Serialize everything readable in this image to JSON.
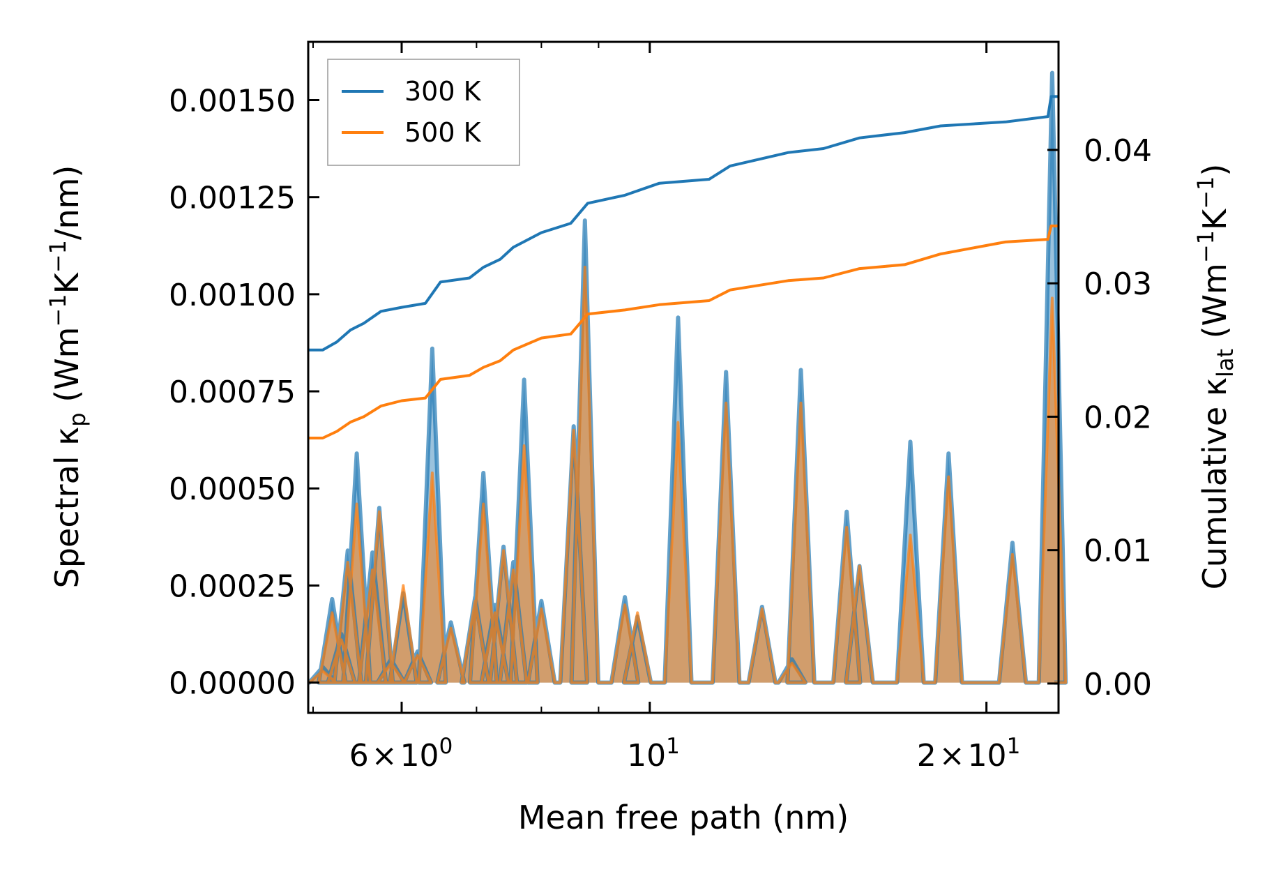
{
  "chart_data": {
    "type": "line",
    "xscale": "log",
    "xlim": [
      4.95,
      23.2
    ],
    "ylim_left": [
      -7.8e-05,
      0.00165
    ],
    "ylim_right": [
      -0.0022,
      0.0481
    ],
    "xlabel": "Mean free path (nm)",
    "ylabel_left": {
      "base": "Spectral κ",
      "sub": "p",
      "unit_open": " (Wm",
      "sup1": "−1",
      "mid": "K",
      "sup2": "−1",
      "tail": "/nm)"
    },
    "ylabel_right": {
      "base": "Cumulative κ",
      "sub": "lat",
      "unit_open": " (Wm",
      "sup1": "−1",
      "mid": "K",
      "sup2": "−1",
      "tail": ")"
    },
    "x_tick_labels": [
      {
        "value": 6,
        "coef": "6",
        "times": "×",
        "base": "10",
        "exp": "0"
      },
      {
        "value": 10,
        "coef": "",
        "times": "",
        "base": "10",
        "exp": "1"
      },
      {
        "value": 20,
        "coef": "2",
        "times": "×",
        "base": "10",
        "exp": "1"
      }
    ],
    "x_minor_ticks": [
      5,
      7,
      8,
      9
    ],
    "y_left_ticks": [
      {
        "value": 0.0,
        "label": "0.00000"
      },
      {
        "value": 0.00025,
        "label": "0.00025"
      },
      {
        "value": 0.0005,
        "label": "0.00050"
      },
      {
        "value": 0.00075,
        "label": "0.00075"
      },
      {
        "value": 0.001,
        "label": "0.00100"
      },
      {
        "value": 0.00125,
        "label": "0.00125"
      },
      {
        "value": 0.0015,
        "label": "0.00150"
      }
    ],
    "y_right_ticks": [
      {
        "value": 0.0,
        "label": "0.00"
      },
      {
        "value": 0.01,
        "label": "0.01"
      },
      {
        "value": 0.02,
        "label": "0.02"
      },
      {
        "value": 0.03,
        "label": "0.03"
      },
      {
        "value": 0.04,
        "label": "0.04"
      }
    ],
    "legend": {
      "position": "upper-left",
      "entries": [
        {
          "name": "300 K",
          "color": "#1f77b4"
        },
        {
          "name": "500 K",
          "color": "#ff7f0e"
        }
      ]
    },
    "series": [
      {
        "name": "300 K",
        "color": "#1f77b4",
        "spectral_peaks": [
          [
            5.1,
            4e-05
          ],
          [
            5.2,
            0.000215
          ],
          [
            5.3,
            0.000125
          ],
          [
            5.37,
            0.00034
          ],
          [
            5.47,
            0.00059
          ],
          [
            5.65,
            0.000335
          ],
          [
            5.73,
            0.00045
          ],
          [
            5.87,
            6e-05
          ],
          [
            6.02,
            0.00023
          ],
          [
            6.2,
            8e-05
          ],
          [
            6.39,
            0.00086
          ],
          [
            6.64,
            0.000155
          ],
          [
            6.98,
            0.00022
          ],
          [
            7.1,
            0.00054
          ],
          [
            7.27,
            0.0002
          ],
          [
            7.4,
            0.00035
          ],
          [
            7.55,
            0.00031
          ],
          [
            7.72,
            0.00078
          ],
          [
            8.0,
            0.00021
          ],
          [
            8.55,
            0.00066
          ],
          [
            8.75,
            0.00119
          ],
          [
            9.5,
            0.00022
          ],
          [
            9.75,
            0.00017
          ],
          [
            10.6,
            0.00094
          ],
          [
            11.7,
            0.0008
          ],
          [
            12.6,
            0.000195
          ],
          [
            13.4,
            6e-05
          ],
          [
            13.65,
            0.000805
          ],
          [
            15.0,
            0.00044
          ],
          [
            15.4,
            0.0003
          ],
          [
            17.1,
            0.00062
          ],
          [
            18.5,
            0.00059
          ],
          [
            21.1,
            0.00036
          ],
          [
            22.9,
            0.00157
          ]
        ],
        "cumulative": [
          [
            4.95,
            0.025
          ],
          [
            5.1,
            0.025
          ],
          [
            5.25,
            0.0256
          ],
          [
            5.4,
            0.0265
          ],
          [
            5.55,
            0.027
          ],
          [
            5.75,
            0.0279
          ],
          [
            6.0,
            0.0282
          ],
          [
            6.3,
            0.0285
          ],
          [
            6.5,
            0.0301
          ],
          [
            6.9,
            0.0304
          ],
          [
            7.1,
            0.0312
          ],
          [
            7.35,
            0.0318
          ],
          [
            7.55,
            0.0327
          ],
          [
            8.0,
            0.0338
          ],
          [
            8.5,
            0.0345
          ],
          [
            8.8,
            0.036
          ],
          [
            9.5,
            0.0366
          ],
          [
            10.2,
            0.0375
          ],
          [
            11.3,
            0.0378
          ],
          [
            11.8,
            0.0388
          ],
          [
            13.3,
            0.0398
          ],
          [
            14.3,
            0.0401
          ],
          [
            15.4,
            0.0409
          ],
          [
            16.9,
            0.0413
          ],
          [
            18.2,
            0.0418
          ],
          [
            20.8,
            0.0421
          ],
          [
            22.7,
            0.0425
          ],
          [
            22.85,
            0.044
          ],
          [
            23.2,
            0.044
          ]
        ]
      },
      {
        "name": "500 K",
        "color": "#ff7f0e",
        "spectral_peaks": [
          [
            5.1,
            3e-05
          ],
          [
            5.2,
            0.00018
          ],
          [
            5.3,
            0.00011
          ],
          [
            5.37,
            0.00031
          ],
          [
            5.47,
            0.00046
          ],
          [
            5.65,
            0.00029
          ],
          [
            5.73,
            0.00044
          ],
          [
            5.87,
            5e-05
          ],
          [
            6.02,
            0.00025
          ],
          [
            6.2,
            7e-05
          ],
          [
            6.39,
            0.00054
          ],
          [
            6.64,
            0.00014
          ],
          [
            6.98,
            0.00021
          ],
          [
            7.1,
            0.00046
          ],
          [
            7.27,
            0.00018
          ],
          [
            7.4,
            0.00034
          ],
          [
            7.55,
            0.00029
          ],
          [
            7.72,
            0.00061
          ],
          [
            8.0,
            0.00019
          ],
          [
            8.55,
            0.00065
          ],
          [
            8.75,
            0.00107
          ],
          [
            9.5,
            0.0002
          ],
          [
            9.75,
            0.00018
          ],
          [
            10.6,
            0.00067
          ],
          [
            11.7,
            0.00072
          ],
          [
            12.6,
            0.00019
          ],
          [
            13.4,
            5e-05
          ],
          [
            13.65,
            0.00072
          ],
          [
            15.0,
            0.0004
          ],
          [
            15.4,
            0.0003
          ],
          [
            17.1,
            0.00038
          ],
          [
            18.5,
            0.00053
          ],
          [
            21.1,
            0.00033
          ],
          [
            22.9,
            0.00099
          ]
        ],
        "cumulative": [
          [
            4.95,
            0.0184
          ],
          [
            5.1,
            0.0184
          ],
          [
            5.25,
            0.0189
          ],
          [
            5.4,
            0.0196
          ],
          [
            5.55,
            0.02
          ],
          [
            5.75,
            0.0208
          ],
          [
            6.0,
            0.0212
          ],
          [
            6.3,
            0.0214
          ],
          [
            6.5,
            0.0228
          ],
          [
            6.9,
            0.0231
          ],
          [
            7.1,
            0.0237
          ],
          [
            7.35,
            0.0242
          ],
          [
            7.55,
            0.025
          ],
          [
            8.0,
            0.0259
          ],
          [
            8.5,
            0.0262
          ],
          [
            8.8,
            0.0277
          ],
          [
            9.5,
            0.028
          ],
          [
            10.2,
            0.0284
          ],
          [
            11.3,
            0.0287
          ],
          [
            11.8,
            0.0295
          ],
          [
            13.3,
            0.0302
          ],
          [
            14.3,
            0.0304
          ],
          [
            15.4,
            0.0311
          ],
          [
            16.9,
            0.0314
          ],
          [
            18.2,
            0.0322
          ],
          [
            20.8,
            0.0331
          ],
          [
            22.7,
            0.0333
          ],
          [
            22.85,
            0.0343
          ],
          [
            23.2,
            0.0343
          ]
        ]
      }
    ]
  }
}
